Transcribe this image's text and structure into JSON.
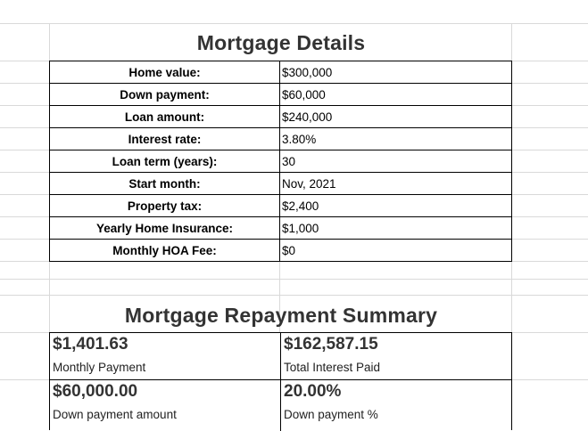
{
  "details": {
    "title": "Mortgage Details",
    "rows": [
      {
        "label": "Home value:",
        "value": "$300,000"
      },
      {
        "label": "Down payment:",
        "value": "$60,000"
      },
      {
        "label": "Loan amount:",
        "value": "$240,000"
      },
      {
        "label": "Interest rate:",
        "value": "3.80%"
      },
      {
        "label": "Loan term (years):",
        "value": "30"
      },
      {
        "label": "Start month:",
        "value": "Nov, 2021"
      },
      {
        "label": "Property tax:",
        "value": "$2,400"
      },
      {
        "label": "Yearly Home Insurance:",
        "value": "$1,000"
      },
      {
        "label": "Monthly HOA Fee:",
        "value": "$0"
      }
    ]
  },
  "summary": {
    "title": "Mortgage Repayment Summary",
    "monthly_payment": {
      "value": "$1,401.63",
      "label": "Monthly Payment"
    },
    "total_interest": {
      "value": "$162,587.15",
      "label": "Total Interest Paid"
    },
    "down_payment_amount": {
      "value": "$60,000.00",
      "label": "Down payment amount"
    },
    "down_payment_pct": {
      "value": "20.00%",
      "label": "Down payment %"
    }
  }
}
